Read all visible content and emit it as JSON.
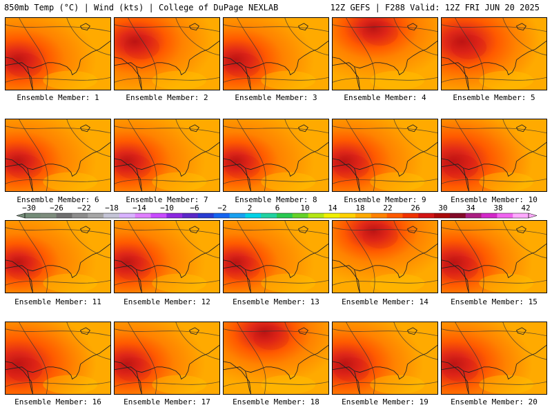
{
  "header": {
    "left": "850mb Temp (°C) | Wind (kts) | College of DuPage NEXLAB",
    "right": "12Z GEFS | F288 Valid: 12Z FRI JUN 20 2025"
  },
  "members": [
    {
      "label": "Ensemble Member: 1",
      "heat": 0.55,
      "hot": "west"
    },
    {
      "label": "Ensemble Member: 2",
      "heat": 0.55,
      "hot": "northwest"
    },
    {
      "label": "Ensemble Member: 3",
      "heat": 0.55,
      "hot": "west"
    },
    {
      "label": "Ensemble Member: 4",
      "heat": 0.5,
      "hot": "north"
    },
    {
      "label": "Ensemble Member: 5",
      "heat": 0.7,
      "hot": "northwest"
    },
    {
      "label": "Ensemble Member: 6",
      "heat": 0.5,
      "hot": "west"
    },
    {
      "label": "Ensemble Member: 7",
      "heat": 0.5,
      "hot": "west"
    },
    {
      "label": "Ensemble Member: 8",
      "heat": 0.45,
      "hot": "west"
    },
    {
      "label": "Ensemble Member: 9",
      "heat": 0.55,
      "hot": "west"
    },
    {
      "label": "Ensemble Member: 10",
      "heat": 0.75,
      "hot": "west"
    },
    {
      "label": "Ensemble Member: 11",
      "heat": 0.45,
      "hot": "west"
    },
    {
      "label": "Ensemble Member: 12",
      "heat": 0.5,
      "hot": "west"
    },
    {
      "label": "Ensemble Member: 13",
      "heat": 0.45,
      "hot": "west"
    },
    {
      "label": "Ensemble Member: 14",
      "heat": 0.5,
      "hot": "north"
    },
    {
      "label": "Ensemble Member: 15",
      "heat": 0.6,
      "hot": "west"
    },
    {
      "label": "Ensemble Member: 16",
      "heat": 0.75,
      "hot": "west"
    },
    {
      "label": "Ensemble Member: 17",
      "heat": 0.55,
      "hot": "west"
    },
    {
      "label": "Ensemble Member: 18",
      "heat": 0.55,
      "hot": "north"
    },
    {
      "label": "Ensemble Member: 19",
      "heat": 0.6,
      "hot": "west"
    },
    {
      "label": "Ensemble Member: 20",
      "heat": 0.65,
      "hot": "west"
    }
  ],
  "colorbar": {
    "unit": "°C",
    "ticks": [
      "-30",
      "-26",
      "-22",
      "-18",
      "-14",
      "-10",
      "-6",
      "-2",
      "2",
      "6",
      "10",
      "14",
      "18",
      "22",
      "26",
      "30",
      "34",
      "38",
      "42"
    ],
    "colors": [
      "#748c78",
      "#7d8c7d",
      "#6e6e6e",
      "#8c8c8c",
      "#a6a6a6",
      "#c4c4d6",
      "#d9b3ff",
      "#e080ff",
      "#c84bff",
      "#8c28e0",
      "#5a28c8",
      "#283cd2",
      "#1464f0",
      "#18a0f0",
      "#00d2e6",
      "#20d2a0",
      "#28c850",
      "#64d228",
      "#b4e614",
      "#f0f000",
      "#ffd200",
      "#ffaa00",
      "#ff8200",
      "#ff5a00",
      "#f03200",
      "#d21414",
      "#aa0a0a",
      "#820a28",
      "#aa1e82",
      "#d228c8",
      "#f064f0",
      "#ffaaff"
    ]
  }
}
